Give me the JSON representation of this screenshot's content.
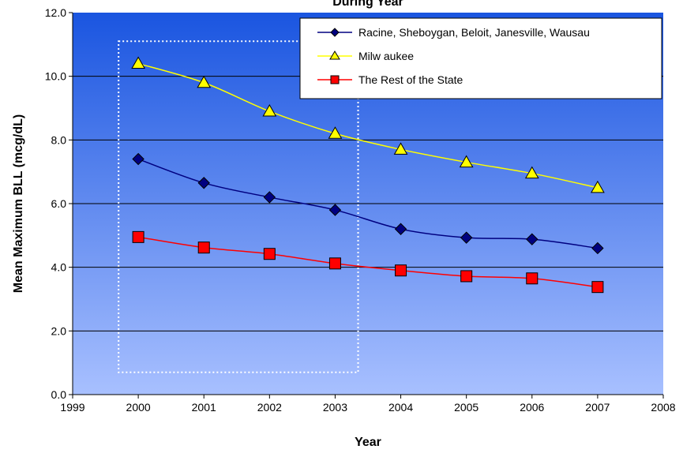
{
  "chart_data": {
    "type": "line",
    "title": "During Year",
    "xlabel": "Year",
    "ylabel": "Mean Maximum BLL (mcg/dL)",
    "xlim": [
      1999,
      2008
    ],
    "ylim": [
      0,
      12
    ],
    "x_ticks": [
      "1999",
      "2000",
      "2001",
      "2002",
      "2003",
      "2004",
      "2005",
      "2006",
      "2007",
      "2008"
    ],
    "y_ticks": [
      "0.0",
      "2.0",
      "4.0",
      "6.0",
      "8.0",
      "10.0",
      "12.0"
    ],
    "grid": true,
    "legend_position": "top-right",
    "x": [
      2000,
      2001,
      2002,
      2003,
      2004,
      2005,
      2006,
      2007
    ],
    "series": [
      {
        "name": "Racine, Sheboygan, Beloit, Janesville, Wausau",
        "marker": "diamond",
        "color": "#000080",
        "fill": "#000080",
        "values": [
          7.4,
          6.65,
          6.2,
          5.8,
          5.2,
          4.93,
          4.88,
          4.6
        ]
      },
      {
        "name": "Milw aukee",
        "marker": "triangle",
        "color": "#ffff00",
        "fill": "#ffff00",
        "values": [
          10.4,
          9.8,
          8.9,
          8.2,
          7.7,
          7.3,
          6.95,
          6.5
        ]
      },
      {
        "name": "The Rest of the State",
        "marker": "square",
        "color": "#ff0000",
        "fill": "#ff0000",
        "values": [
          4.95,
          4.62,
          4.42,
          4.12,
          3.9,
          3.72,
          3.65,
          3.38
        ]
      }
    ],
    "highlight_box": {
      "x_range": [
        1999.7,
        2003.35
      ],
      "y_range": [
        0.7,
        11.1
      ],
      "color": "#ffffff"
    },
    "colors": {
      "plot_top": "#1a55e0",
      "plot_bottom": "#a8c0ff",
      "gridline": "#000000"
    }
  }
}
